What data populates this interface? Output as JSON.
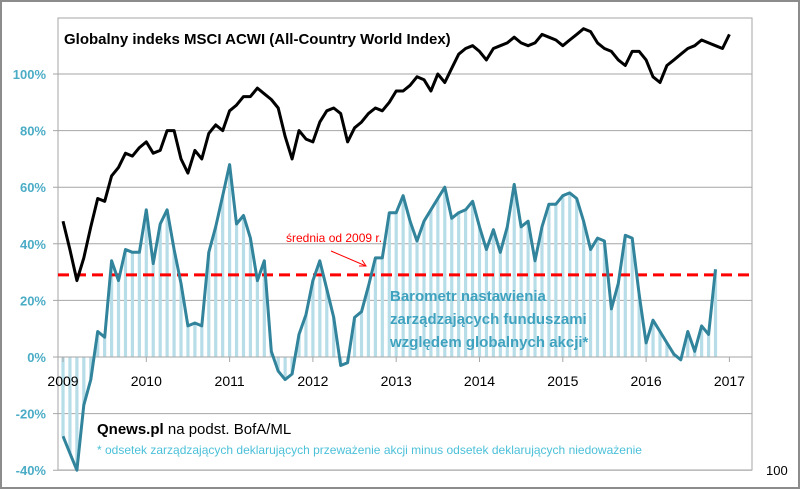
{
  "chart_data": {
    "type": "bar",
    "title": "Globalny indeks MSCI ACWI (All-Country World Index)",
    "xlabel": "",
    "ylabel": "",
    "ylim": [
      -40,
      120
    ],
    "y_ticks": [
      "-40%",
      "-20%",
      "0%",
      "20%",
      "40%",
      "60%",
      "80%",
      "100%"
    ],
    "y_tick_values": [
      -40,
      -20,
      0,
      20,
      40,
      60,
      80,
      100
    ],
    "x_ticks": [
      "2009",
      "2010",
      "2011",
      "2012",
      "2013",
      "2014",
      "2015",
      "2016",
      "2017"
    ],
    "grid": true,
    "start": "2009-01",
    "frequency": "monthly",
    "average_line": {
      "value": 29,
      "label": "średnia od 2009 r.",
      "color": "#ff0000"
    },
    "series": [
      {
        "name": "Barometr nastawienia zarządzających funduszami względem globalnych akcji*",
        "type": "bar+line",
        "color": "#31849b",
        "bar_color": "#b7dde8",
        "values": [
          -28,
          -34,
          -40,
          -17,
          -8,
          9,
          7,
          34,
          27,
          38,
          37,
          37,
          52,
          33,
          47,
          52,
          38,
          26,
          11,
          12,
          11,
          37,
          46,
          57,
          68,
          47,
          50,
          42,
          27,
          34,
          2,
          -5,
          -8,
          -6,
          8,
          15,
          27,
          34,
          24,
          14,
          -3,
          -2,
          14,
          16,
          25,
          35,
          35,
          51,
          51,
          57,
          48,
          41,
          48,
          52,
          56,
          60,
          49,
          51,
          52,
          55,
          46,
          38,
          45,
          37,
          46,
          61,
          46,
          48,
          34,
          46,
          54,
          54,
          57,
          58,
          56,
          48,
          38,
          42,
          41,
          17,
          26,
          43,
          42,
          22,
          5,
          13,
          9,
          5,
          1,
          -1,
          9,
          2,
          11,
          8,
          31
        ]
      },
      {
        "name": "Globalny indeks MSCI ACWI",
        "type": "line",
        "color": "#000000",
        "values": [
          48,
          38,
          27,
          35,
          46,
          56,
          55,
          64,
          67,
          72,
          71,
          74,
          76,
          72,
          73,
          80,
          80,
          70,
          65,
          73,
          70,
          79,
          82,
          80,
          87,
          89,
          92,
          92,
          95,
          93,
          91,
          88,
          78,
          70,
          80,
          77,
          76,
          83,
          87,
          88,
          86,
          76,
          81,
          83,
          86,
          88,
          87,
          90,
          94,
          94,
          96,
          99,
          98,
          94,
          100,
          97,
          102,
          107,
          109,
          110,
          108,
          105,
          109,
          110,
          111,
          113,
          111,
          110,
          111,
          114,
          113,
          112,
          110,
          112,
          114,
          116,
          115,
          111,
          109,
          108,
          105,
          103,
          108,
          108,
          105,
          99,
          97,
          103,
          105,
          107,
          109,
          110,
          112,
          111,
          110,
          109,
          114
        ]
      }
    ],
    "annotations": [
      "średnia od 2009 r.",
      "Barometr nastawienia",
      "zarządzających funduszami",
      "względem globalnych akcji*"
    ]
  },
  "labels": {
    "title": "Globalny indeks MSCI ACWI (All-Country World Index)",
    "avg_label": "średnia od 2009 r.",
    "baro_1": "Barometr nastawienia",
    "baro_2": "zarządzających  funduszami",
    "baro_3": "względem globalnych  akcji*",
    "source_bold": "Qnews.pl",
    "source_rest": " na podst. BofA/ML",
    "footnote": "* odsetek zarządzających deklarujących przeważenie akcji minus odsetek deklarujących niedoważenie",
    "corner": "100"
  }
}
